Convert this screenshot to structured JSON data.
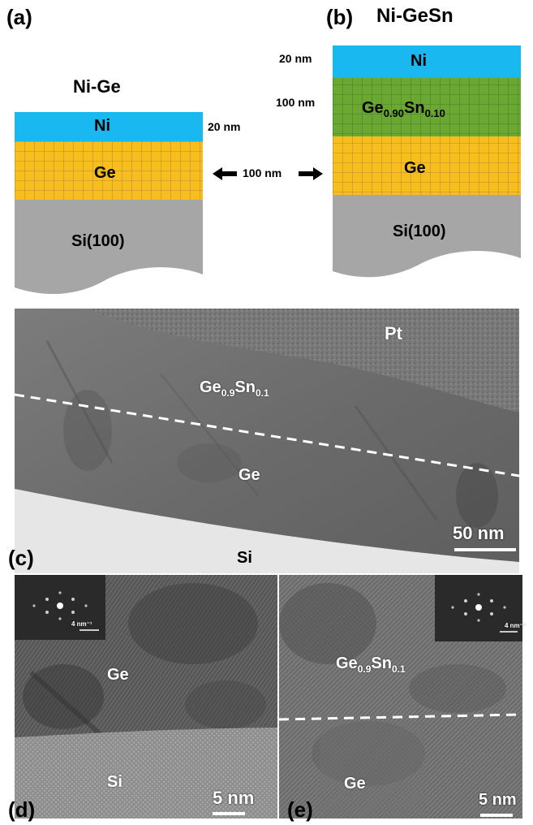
{
  "panel_a": {
    "label": "(a)",
    "title": "Ni-Ge",
    "layers": {
      "ni": "Ni",
      "ge": "Ge",
      "si": "Si(100)"
    },
    "ni_thickness": "20 nm"
  },
  "panel_b": {
    "label": "(b)",
    "title": "Ni-GeSn",
    "layers": {
      "ni": "Ni",
      "gesn_main": "Ge",
      "gesn_sub1": "0.90",
      "gesn_mid": "Sn",
      "gesn_sub2": "0.10",
      "ge": "Ge",
      "si": "Si(100)"
    },
    "ni_thickness": "20 nm",
    "gesn_thickness": "100 nm"
  },
  "middle_arrow": "100 nm",
  "panel_c": {
    "label": "(c)",
    "pt": "Pt",
    "gesn_main": "Ge",
    "gesn_sub1": "0.9",
    "gesn_mid": "Sn",
    "gesn_sub2": "0.1",
    "ge": "Ge",
    "si": "Si",
    "scale": "50 nm"
  },
  "panel_d": {
    "label": "(d)",
    "ge": "Ge",
    "si": "Si",
    "fft_scale": "4 nm⁻¹",
    "scale": "5 nm"
  },
  "panel_e": {
    "label": "(e)",
    "gesn_main": "Ge",
    "gesn_sub1": "0.9",
    "gesn_mid": "Sn",
    "gesn_sub2": "0.1",
    "ge": "Ge",
    "fft_scale": "4 nm⁻¹",
    "scale": "5 nm"
  },
  "colors": {
    "ni": "#1ab8f0",
    "ge": "#f7be1e",
    "gesn": "#6aa833",
    "si": "#a6a6a6",
    "grid": "#a07c3a"
  }
}
